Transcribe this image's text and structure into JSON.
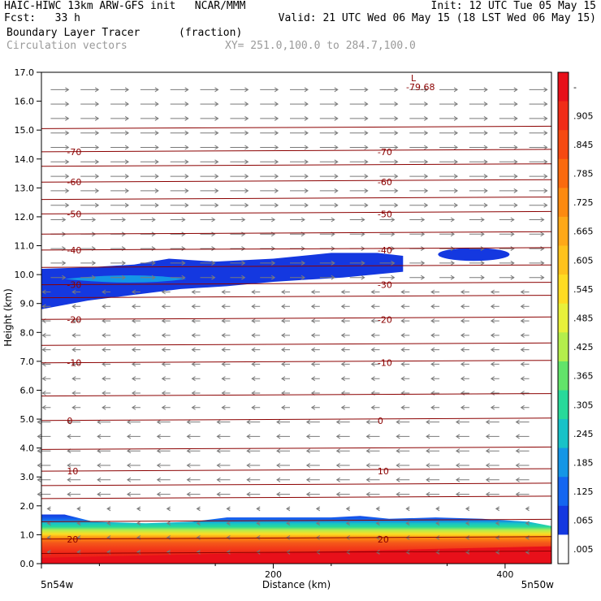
{
  "header": {
    "line1_left": "HAIC-HIWC 13km ARW-GFS init   NCAR/MMM",
    "line1_right": "Init: 12 UTC Tue 05 May 15",
    "line2_left": "Fcst:   33 h",
    "line2_right": "Valid: 21 UTC Wed 06 May 15 (18 LST Wed 06 May 15)",
    "line3_left": "Boundary Layer Tracer",
    "line3_units": "(fraction)",
    "line4_left": "Circulation vectors",
    "line4_right": "XY= 251.0,100.0 to 284.7,100.0"
  },
  "chart_data": {
    "type": "heatmap",
    "title": "Boundary Layer Tracer",
    "units": "(fraction)",
    "xlabel": "Distance (km)",
    "ylabel": "Height (km)",
    "xlim": [
      0,
      440
    ],
    "ylim": [
      0,
      17
    ],
    "x_ticks": [
      0,
      200,
      400
    ],
    "x_tick_labels": [
      "",
      "200",
      "400"
    ],
    "x_end_labels": [
      "5n54w",
      "5n50w"
    ],
    "y_ticks": [
      0.0,
      1.0,
      2.0,
      3.0,
      4.0,
      5.0,
      6.0,
      7.0,
      8.0,
      9.0,
      10.0,
      11.0,
      12.0,
      13.0,
      14.0,
      15.0,
      16.0,
      17.0
    ],
    "y_tick_labels": [
      "0.0",
      "1.0",
      "2.0",
      "3.0",
      "4.0",
      "5.0",
      "6.0",
      "7.0",
      "8.0",
      "9.0",
      "10.0",
      "11.0",
      "12.0",
      "13.0",
      "14.0",
      "15.0",
      "16.0",
      "17.0"
    ],
    "colorbar": {
      "labels": [
        "-",
        ".905",
        ".845",
        ".785",
        ".725",
        ".665",
        ".605",
        ".545",
        ".485",
        ".425",
        ".365",
        ".305",
        ".245",
        ".185",
        ".125",
        ".065",
        ".005"
      ],
      "colors": [
        "#e8101a",
        "#f02c18",
        "#f54a12",
        "#fa6a0e",
        "#fd8a10",
        "#fea818",
        "#fec21c",
        "#fedc22",
        "#e8f03a",
        "#b4ee4c",
        "#62e36a",
        "#28d99a",
        "#18c2c8",
        "#1496e6",
        "#1466f0",
        "#1438e0",
        "#ffffff"
      ]
    },
    "temperature_contours": [
      {
        "label": "0",
        "height_km": 4.95
      },
      {
        "label": "10",
        "height_km": 3.2
      },
      {
        "label": "-10",
        "height_km": 6.95
      },
      {
        "label": "-20",
        "height_km": 8.45
      },
      {
        "label": "-30",
        "height_km": 9.65
      },
      {
        "label": "-40",
        "height_km": 10.85
      },
      {
        "label": "-50",
        "height_km": 12.1
      },
      {
        "label": "-60",
        "height_km": 13.2
      },
      {
        "label": "-70",
        "height_km": 14.25
      },
      {
        "label": "20",
        "height_km": 0.85
      }
    ],
    "contour_levels_km": [
      0.35,
      0.85,
      1.45,
      2.25,
      2.7,
      3.2,
      3.95,
      4.95,
      5.8,
      6.95,
      7.55,
      8.45,
      9.2,
      9.65,
      10.25,
      10.85,
      11.4,
      12.1,
      12.6,
      13.2,
      13.75,
      14.25,
      15.05
    ],
    "annotations": [
      {
        "text": "L",
        "x_km": 355,
        "height_km": 16.85
      },
      {
        "text": "-79.68",
        "x_km": 362,
        "height_km": 16.5
      }
    ],
    "tracer_regions": [
      {
        "name": "upper-layer",
        "value_range": [
          0.005,
          0.125
        ],
        "height_km_range": [
          8.8,
          10.8
        ]
      },
      {
        "name": "boundary-layer",
        "value_range": [
          0.065,
          0.905
        ],
        "height_km_range": [
          0.0,
          1.7
        ]
      }
    ],
    "wind_vectors": {
      "direction": "easterly-westerly mixed",
      "color": "#7a7a7a"
    }
  }
}
